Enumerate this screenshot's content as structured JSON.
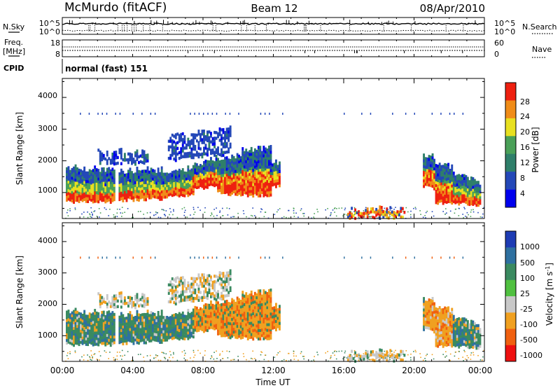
{
  "header": {
    "station": "McMurdo (fitACF)",
    "beam": "Beam 12",
    "date": "08/Apr/2010"
  },
  "chart_data": [
    {
      "type": "line",
      "panel": "noise",
      "left_label": "N.Sky",
      "right_label": "N.Search",
      "left_ticks": [
        "10^5",
        "10^0"
      ],
      "right_ticks": [
        "10^5",
        "10^0"
      ]
    },
    {
      "type": "line",
      "panel": "frequency",
      "left_label_line1": "Freq.",
      "left_label_line2": "[MHz]",
      "right_label": "Nave",
      "left_ticks": [
        "18",
        "8"
      ],
      "right_ticks": [
        "60",
        "0"
      ]
    },
    {
      "type": "text",
      "panel": "cpid",
      "label": "CPID",
      "value": "normal (fast) 151"
    },
    {
      "type": "heatmap",
      "panel": "power",
      "ylabel": "Slant Range [km]",
      "y_ticks": [
        "4000",
        "3000",
        "2000",
        "1000"
      ],
      "colorbar_label": "Power [dB]",
      "colorbar_ticks": [
        "28",
        "24",
        "20",
        "16",
        "12",
        "8",
        "4"
      ],
      "colors": [
        "#0000ee",
        "#2448b8",
        "#2f7f6a",
        "#4aa058",
        "#e8e020",
        "#f08c18",
        "#ee2010"
      ]
    },
    {
      "type": "heatmap",
      "panel": "velocity",
      "ylabel": "Slant Range [km]",
      "y_ticks": [
        "4000",
        "3000",
        "2000",
        "1000"
      ],
      "colorbar_label": "Velocity [m s^-1]",
      "colorbar_ticks": [
        "1000",
        "500",
        "100",
        "25",
        "-25",
        "-100",
        "-500",
        "-1000"
      ],
      "colors": [
        "#1e3cb4",
        "#2e70a0",
        "#3a8a60",
        "#50c040",
        "#c8c8c8",
        "#f0a020",
        "#f06010",
        "#ee1010"
      ],
      "x_ticks": [
        "00:00",
        "04:00",
        "08:00",
        "12:00",
        "16:00",
        "20:00",
        "00:00"
      ],
      "xlabel": "Time UT"
    }
  ]
}
